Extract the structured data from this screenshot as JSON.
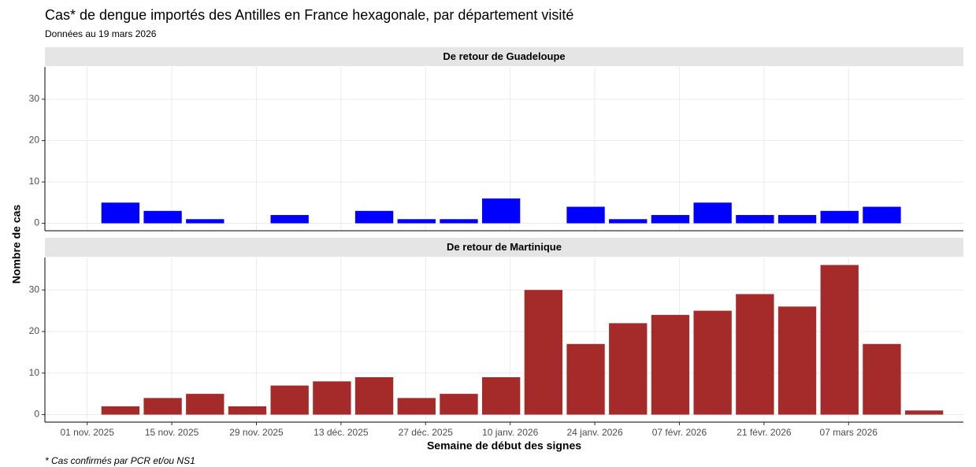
{
  "chart_data": {
    "type": "bar",
    "title": "Cas* de dengue importés des Antilles en France hexagonale, par département visité",
    "subtitle": "Données au 19 mars 2026",
    "x_label": "Semaine de début des signes",
    "y_label": "Nombre de cas",
    "caption": "* Cas confirmés par PCR et/ou NS1",
    "x": [
      "2025-11-03",
      "2025-11-10",
      "2025-11-17",
      "2025-11-24",
      "2025-12-01",
      "2025-12-08",
      "2025-12-15",
      "2025-12-22",
      "2025-12-29",
      "2026-01-05",
      "2026-01-12",
      "2026-01-19",
      "2026-01-26",
      "2026-02-02",
      "2026-02-09",
      "2026-02-16",
      "2026-02-23",
      "2026-03-02",
      "2026-03-09",
      "2026-03-16"
    ],
    "xlim": [
      "2025-10-25",
      "2026-03-26"
    ],
    "xticks": [
      {
        "value": "2025-11-01",
        "label": "01 nov. 2025"
      },
      {
        "value": "2025-11-15",
        "label": "15 nov. 2025"
      },
      {
        "value": "2025-11-29",
        "label": "29 nov. 2025"
      },
      {
        "value": "2025-12-13",
        "label": "13 déc. 2025"
      },
      {
        "value": "2025-12-27",
        "label": "27 déc. 2025"
      },
      {
        "value": "2026-01-10",
        "label": "10 janv. 2026"
      },
      {
        "value": "2026-01-24",
        "label": "24 janv. 2026"
      },
      {
        "value": "2026-02-07",
        "label": "07 févr. 2026"
      },
      {
        "value": "2026-02-21",
        "label": "21 févr. 2026"
      },
      {
        "value": "2026-03-07",
        "label": "07 mars 2026"
      }
    ],
    "ylim": [
      -1.8,
      37.8
    ],
    "yticks": [
      0,
      10,
      20,
      30
    ],
    "grid": true,
    "series": [
      {
        "name": "De retour de Guadeloupe",
        "color": "#0000ff",
        "values": [
          5,
          3,
          1,
          0,
          2,
          0,
          3,
          1,
          1,
          6,
          0,
          4,
          1,
          2,
          5,
          2,
          2,
          3,
          4,
          0
        ]
      },
      {
        "name": "De retour de Martinique",
        "color": "#a52a2a",
        "values": [
          2,
          4,
          5,
          2,
          7,
          8,
          9,
          4,
          5,
          9,
          30,
          17,
          22,
          24,
          25,
          29,
          26,
          36,
          17,
          1
        ]
      }
    ]
  }
}
